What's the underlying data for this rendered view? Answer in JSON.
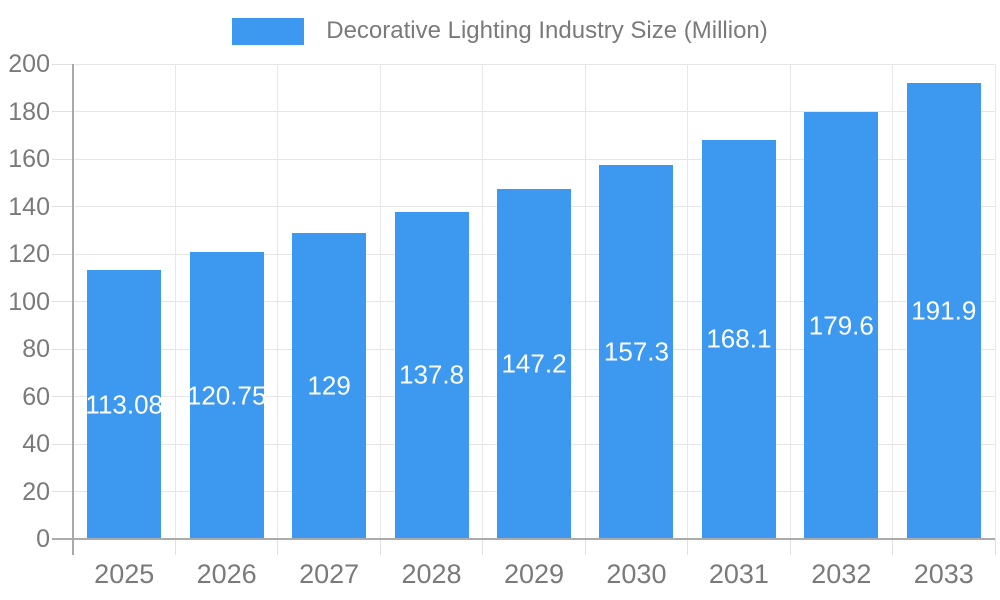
{
  "legend": {
    "label": "Decorative Lighting Industry Size (Million)",
    "position": "top-center"
  },
  "chart_data": {
    "type": "bar",
    "title": "Decorative Lighting Industry Size (Million)",
    "categories": [
      "2025",
      "2026",
      "2027",
      "2028",
      "2029",
      "2030",
      "2031",
      "2032",
      "2033"
    ],
    "values": [
      113.08,
      120.75,
      129,
      137.8,
      147.2,
      157.3,
      168.1,
      179.6,
      191.9
    ],
    "bar_labels": [
      "113.08",
      "120.75",
      "129",
      "137.8",
      "147.2",
      "157.3",
      "168.1",
      "179.6",
      "191.9"
    ],
    "value_label_placement": "inside-center",
    "xlabel": "",
    "ylabel": "",
    "ylim": [
      0,
      200
    ],
    "ytick_step": 20,
    "ytick_labels": [
      "0",
      "20",
      "40",
      "60",
      "80",
      "100",
      "120",
      "140",
      "160",
      "180",
      "200"
    ],
    "grid": true,
    "legend_position": "top"
  },
  "colors": {
    "bar": "#3C99EF",
    "grid_horizontal": "#e6e6e6",
    "grid_vertical": "#e8e8e8",
    "tick": "#e0e0e0",
    "axis": "#ababab",
    "label_text": "#7a7a7a",
    "value_label": "#ffffff",
    "background": "#ffffff"
  }
}
